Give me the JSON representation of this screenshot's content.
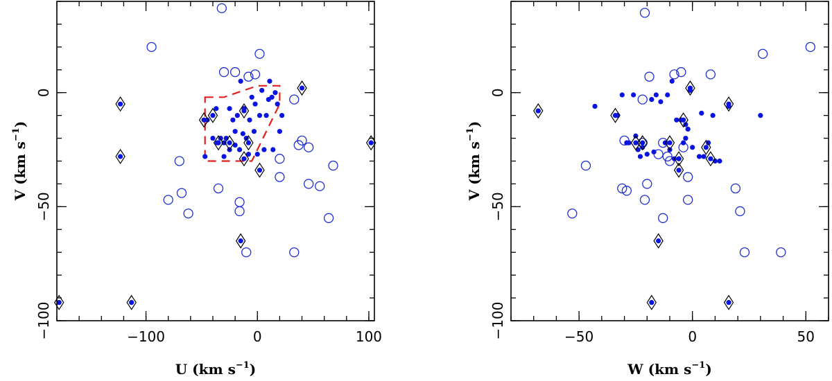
{
  "chart_data": [
    {
      "type": "scatter",
      "panel": "left",
      "xlabel": "U (km s",
      "xlabel_sup": "−1",
      "xlabel_close": ")",
      "ylabel": "V (km s",
      "ylabel_sup": "−1",
      "ylabel_close": ")",
      "xlim": [
        -180,
        105
      ],
      "ylim": [
        -100,
        40
      ],
      "x_ticks": [
        -100,
        0,
        100
      ],
      "x_tick_labels": [
        "−100",
        "0",
        "100"
      ],
      "y_ticks": [
        -100,
        -50,
        0
      ],
      "y_tick_labels": [
        "−100",
        "−50",
        "0"
      ],
      "x_minor_step": 20,
      "y_minor_step": 10,
      "colors": {
        "filled": "#0a14e0",
        "open": "#1f2fd6",
        "diamond": "#000000",
        "region": "#e02020"
      },
      "region_polygon": [
        [
          -47,
          -2
        ],
        [
          -30,
          -2
        ],
        [
          0,
          3
        ],
        [
          20,
          3
        ],
        [
          20,
          -5
        ],
        [
          -5,
          -30
        ],
        [
          -47,
          -30
        ]
      ],
      "filled": [
        [
          -47,
          -28
        ],
        [
          -45,
          -12
        ],
        [
          -40,
          -20
        ],
        [
          -37,
          -7
        ],
        [
          -36,
          -22
        ],
        [
          -33,
          -20
        ],
        [
          -30,
          -22
        ],
        [
          -28,
          -20
        ],
        [
          -25,
          -25
        ],
        [
          -25,
          -7
        ],
        [
          -22,
          -12
        ],
        [
          -20,
          -17
        ],
        [
          -18,
          -10
        ],
        [
          -16,
          -25
        ],
        [
          -15,
          5
        ],
        [
          -13,
          -18
        ],
        [
          -12,
          -7
        ],
        [
          -10,
          -20
        ],
        [
          -8,
          -27
        ],
        [
          -7,
          -12
        ],
        [
          -5,
          -2
        ],
        [
          -3,
          -17
        ],
        [
          -2,
          -5
        ],
        [
          0,
          -27
        ],
        [
          2,
          -10
        ],
        [
          4,
          1
        ],
        [
          6,
          -25
        ],
        [
          8,
          -10
        ],
        [
          10,
          -3
        ],
        [
          11,
          5
        ],
        [
          13,
          -2
        ],
        [
          14,
          -25
        ],
        [
          16,
          0
        ],
        [
          18,
          -5
        ],
        [
          20,
          -17
        ],
        [
          22,
          -10
        ],
        [
          -30,
          -28
        ],
        [
          -20,
          -23
        ]
      ],
      "open": [
        [
          -32,
          37
        ],
        [
          -95,
          20
        ],
        [
          2,
          17
        ],
        [
          -30,
          9
        ],
        [
          -20,
          9
        ],
        [
          -8,
          7
        ],
        [
          -2,
          8
        ],
        [
          33,
          -3
        ],
        [
          37,
          -23
        ],
        [
          40,
          -21
        ],
        [
          46,
          -24
        ],
        [
          20,
          -29
        ],
        [
          68,
          -32
        ],
        [
          -70,
          -30
        ],
        [
          -68,
          -44
        ],
        [
          -80,
          -47
        ],
        [
          -62,
          -53
        ],
        [
          -35,
          -42
        ],
        [
          -16,
          -48
        ],
        [
          -16,
          -52
        ],
        [
          20,
          -37
        ],
        [
          46,
          -40
        ],
        [
          56,
          -41
        ],
        [
          64,
          -55
        ],
        [
          -10,
          -70
        ],
        [
          33,
          -70
        ]
      ],
      "diamond": [
        [
          -178,
          -92
        ],
        [
          -113,
          -92
        ],
        [
          -123,
          -5
        ],
        [
          -123,
          -28
        ],
        [
          -48,
          -12
        ],
        [
          -40,
          -10
        ],
        [
          -35,
          -22
        ],
        [
          -25,
          -22
        ],
        [
          -12,
          -8
        ],
        [
          -12,
          -29
        ],
        [
          -8,
          -22
        ],
        [
          -15,
          -65
        ],
        [
          2,
          -34
        ],
        [
          40,
          2
        ],
        [
          102,
          -22
        ]
      ]
    },
    {
      "type": "scatter",
      "panel": "right",
      "xlabel": "W (km s",
      "xlabel_sup": "−1",
      "xlabel_close": ")",
      "ylabel": "V (km s",
      "ylabel_sup": "−1",
      "ylabel_close": ")",
      "xlim": [
        -80,
        60
      ],
      "ylim": [
        -100,
        40
      ],
      "x_ticks": [
        -50,
        0,
        50
      ],
      "x_tick_labels": [
        "−50",
        "0",
        "50"
      ],
      "y_ticks": [
        -100,
        -50,
        0
      ],
      "y_tick_labels": [
        "−100",
        "−50",
        "0"
      ],
      "x_minor_step": 10,
      "y_minor_step": 10,
      "colors": {
        "filled": "#0a14e0",
        "open": "#1f2fd6",
        "diamond": "#000000"
      },
      "filled": [
        [
          -68,
          -8
        ],
        [
          -43,
          -6
        ],
        [
          -33,
          -10
        ],
        [
          -31,
          -1
        ],
        [
          -29,
          -22
        ],
        [
          -28,
          -22
        ],
        [
          -26,
          -1
        ],
        [
          -25,
          -19
        ],
        [
          -24,
          -25
        ],
        [
          -23,
          -28
        ],
        [
          -22,
          -24
        ],
        [
          -20,
          -27
        ],
        [
          -18,
          -3
        ],
        [
          -17,
          -26
        ],
        [
          -16,
          -1
        ],
        [
          -14,
          -4
        ],
        [
          -12,
          -22
        ],
        [
          -11,
          -1
        ],
        [
          -10,
          -25
        ],
        [
          -9,
          5
        ],
        [
          -8,
          -29
        ],
        [
          -7,
          -12
        ],
        [
          -6,
          -29
        ],
        [
          -5,
          -12
        ],
        [
          -4,
          -22
        ],
        [
          -3,
          -14
        ],
        [
          -3,
          -20
        ],
        [
          -2,
          -16
        ],
        [
          -1,
          1
        ],
        [
          0,
          -24
        ],
        [
          3,
          -28
        ],
        [
          4,
          -9
        ],
        [
          5,
          -28
        ],
        [
          7,
          -22
        ],
        [
          9,
          -10
        ],
        [
          10,
          -30
        ],
        [
          12,
          -30
        ],
        [
          16,
          -6
        ],
        [
          30,
          -10
        ]
      ],
      "open": [
        [
          -21,
          35
        ],
        [
          52,
          20
        ],
        [
          31,
          17
        ],
        [
          -19,
          7
        ],
        [
          -8,
          8
        ],
        [
          -5,
          9
        ],
        [
          8,
          8
        ],
        [
          -22,
          -3
        ],
        [
          -30,
          -21
        ],
        [
          -22,
          -22
        ],
        [
          -15,
          -27
        ],
        [
          -13,
          -22
        ],
        [
          -11,
          -28
        ],
        [
          -10,
          -30
        ],
        [
          -4,
          -24
        ],
        [
          -2,
          -37
        ],
        [
          -47,
          -32
        ],
        [
          -31,
          -42
        ],
        [
          -29,
          -43
        ],
        [
          -20,
          -40
        ],
        [
          -21,
          -47
        ],
        [
          -2,
          -47
        ],
        [
          19,
          -42
        ],
        [
          21,
          -52
        ],
        [
          -53,
          -53
        ],
        [
          -13,
          -55
        ],
        [
          23,
          -70
        ],
        [
          39,
          -70
        ]
      ],
      "diamond": [
        [
          -68,
          -8
        ],
        [
          -34,
          -10
        ],
        [
          -25,
          -22
        ],
        [
          -22,
          -22
        ],
        [
          -18,
          -92
        ],
        [
          -15,
          -65
        ],
        [
          -10,
          -22
        ],
        [
          -6,
          -29
        ],
        [
          -6,
          -34
        ],
        [
          -4,
          -12
        ],
        [
          -1,
          2
        ],
        [
          6,
          -24
        ],
        [
          8,
          -29
        ],
        [
          16,
          -5
        ],
        [
          16,
          -92
        ]
      ]
    }
  ]
}
